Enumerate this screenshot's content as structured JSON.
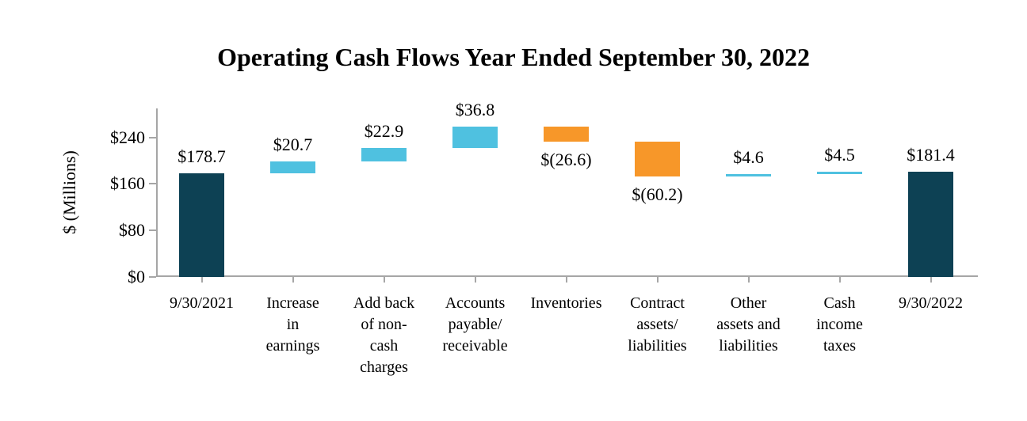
{
  "chart_data": {
    "type": "bar",
    "subtype": "waterfall",
    "title": "Operating Cash Flows Year Ended September 30, 2022",
    "ylabel": "$ (Millions)",
    "ylim": [
      0,
      290
    ],
    "grid": false,
    "legend": "none",
    "yticks": [
      {
        "value": 0,
        "label": "$0"
      },
      {
        "value": 80,
        "label": "$80"
      },
      {
        "value": 160,
        "label": "$160"
      },
      {
        "value": 240,
        "label": "$240"
      }
    ],
    "categories": [
      "9/30/2021",
      "Increase in earnings",
      "Add back of non-cash charges",
      "Accounts payable/ receivable",
      "Inventories",
      "Contract assets/ liabilities",
      "Other assets and liabilities",
      "Cash income taxes",
      "9/30/2022"
    ],
    "bars": [
      {
        "category_lines": [
          "9/30/2021"
        ],
        "value": 178.7,
        "label": "$178.7",
        "kind": "total",
        "label_position": "above"
      },
      {
        "category_lines": [
          "Increase",
          "in",
          "earnings"
        ],
        "value": 20.7,
        "label": "$20.7",
        "kind": "increase",
        "label_position": "above"
      },
      {
        "category_lines": [
          "Add back",
          "of non-",
          "cash",
          "charges"
        ],
        "value": 22.9,
        "label": "$22.9",
        "kind": "increase",
        "label_position": "above"
      },
      {
        "category_lines": [
          "Accounts",
          "payable/",
          "receivable"
        ],
        "value": 36.8,
        "label": "$36.8",
        "kind": "increase",
        "label_position": "above"
      },
      {
        "category_lines": [
          "Inventories"
        ],
        "value": -26.6,
        "label": "$(26.6)",
        "kind": "decrease",
        "label_position": "below"
      },
      {
        "category_lines": [
          "Contract",
          "assets/",
          "liabilities"
        ],
        "value": -60.2,
        "label": "$(60.2)",
        "kind": "decrease",
        "label_position": "below"
      },
      {
        "category_lines": [
          "Other",
          "assets and",
          "liabilities"
        ],
        "value": 4.6,
        "label": "$4.6",
        "kind": "increase",
        "label_position": "above"
      },
      {
        "category_lines": [
          "Cash",
          "income",
          "taxes"
        ],
        "value": 4.5,
        "label": "$4.5",
        "kind": "increase",
        "label_position": "above"
      },
      {
        "category_lines": [
          "9/30/2022"
        ],
        "value": 181.4,
        "label": "$181.4",
        "kind": "total",
        "label_position": "above"
      }
    ],
    "colors": {
      "total": "#0d4154",
      "increase": "#4fc1e0",
      "decrease": "#f79729",
      "axis": "#a6a6a6",
      "text": "#000000"
    }
  }
}
